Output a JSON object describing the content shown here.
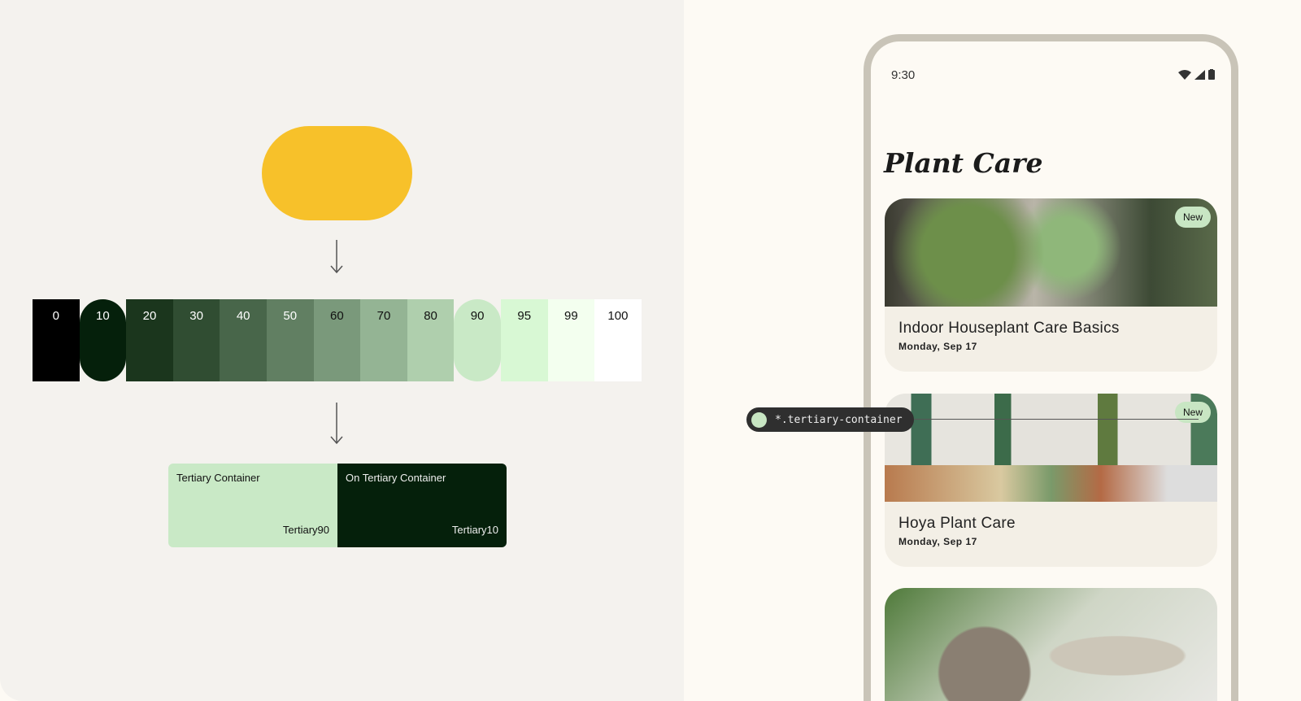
{
  "seed_color": "#f7c12a",
  "palette": {
    "tones": [
      {
        "label": "0",
        "bg": "#000000",
        "fg": "#ffffff",
        "round": false
      },
      {
        "label": "10",
        "bg": "#05200b",
        "fg": "#ffffff",
        "round": true
      },
      {
        "label": "20",
        "bg": "#1b361d",
        "fg": "#ffffff",
        "round": false
      },
      {
        "label": "30",
        "bg": "#304d32",
        "fg": "#ffffff",
        "round": false
      },
      {
        "label": "40",
        "bg": "#48664a",
        "fg": "#ffffff",
        "round": false
      },
      {
        "label": "50",
        "bg": "#617f62",
        "fg": "#ffffff",
        "round": false
      },
      {
        "label": "60",
        "bg": "#7a997b",
        "fg": "#111111",
        "round": false
      },
      {
        "label": "70",
        "bg": "#94b494",
        "fg": "#111111",
        "round": false
      },
      {
        "label": "80",
        "bg": "#afcfad",
        "fg": "#111111",
        "round": false
      },
      {
        "label": "90",
        "bg": "#c9e9c6",
        "fg": "#111111",
        "round": true
      },
      {
        "label": "95",
        "bg": "#d8f8d4",
        "fg": "#111111",
        "round": false
      },
      {
        "label": "99",
        "bg": "#f3ffef",
        "fg": "#111111",
        "round": false
      },
      {
        "label": "100",
        "bg": "#ffffff",
        "fg": "#111111",
        "round": false
      }
    ]
  },
  "roles": {
    "container": {
      "label": "Tertiary Container",
      "tone": "Tertiary90",
      "bg": "#c9e9c6"
    },
    "on_container": {
      "label": "On Tertiary Container",
      "tone": "Tertiary10",
      "bg": "#05200b"
    }
  },
  "phone": {
    "time": "9:30",
    "title": "Plant Care",
    "cards": [
      {
        "title": "Indoor Houseplant Care Basics",
        "date": "Monday, Sep 17",
        "badge": "New"
      },
      {
        "title": "Hoya Plant Care",
        "date": "Monday, Sep 17",
        "badge": "New"
      }
    ]
  },
  "annotation": {
    "token": "*.tertiary-container"
  }
}
